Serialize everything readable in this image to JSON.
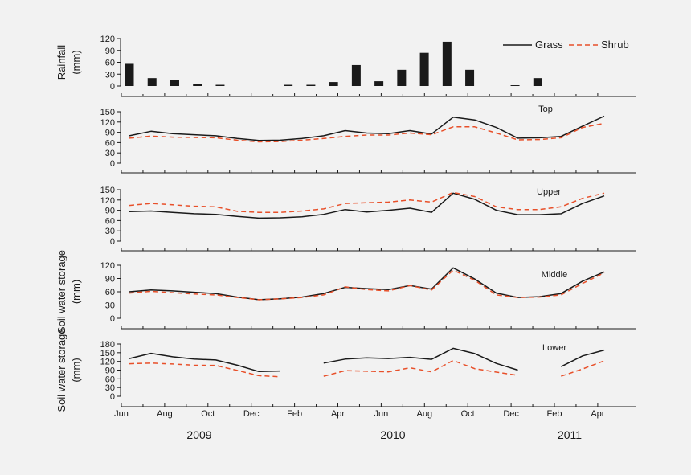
{
  "chart_data": {
    "type": "line",
    "legend": {
      "position": "top-right",
      "entries": [
        {
          "name": "Grass",
          "color": "#1a1a1a",
          "style": "solid"
        },
        {
          "name": "Shrub",
          "color": "#e8502a",
          "style": "dashed"
        }
      ]
    },
    "x_axis": {
      "ticks": [
        "Jun",
        "Aug",
        "Oct",
        "Dec",
        "Feb",
        "Apr",
        "Jun",
        "Aug",
        "Oct",
        "Dec",
        "Feb",
        "Apr"
      ],
      "years": [
        "2009",
        "2010",
        "2011"
      ]
    },
    "panels": [
      {
        "id": "rainfall",
        "type": "bar",
        "ylabel": [
          "Rainfall",
          "(mm)"
        ],
        "ylim": [
          0,
          120
        ],
        "yticks": [
          0,
          30,
          60,
          90,
          120
        ],
        "bar_color": "#1a1a1a",
        "values": [
          56,
          20,
          15,
          6,
          3,
          0,
          0,
          3,
          3,
          10,
          53,
          12,
          41,
          84,
          112,
          41,
          0,
          2,
          20,
          0,
          0,
          0
        ]
      },
      {
        "id": "top",
        "type": "line",
        "title": "Top",
        "ylim": [
          0,
          150
        ],
        "yticks": [
          0,
          30,
          60,
          90,
          120,
          150
        ],
        "series": [
          {
            "name": "Grass",
            "values": [
              80,
              93,
              86,
              83,
              80,
              72,
              66,
              67,
              72,
              80,
              95,
              88,
              86,
              95,
              85,
              134,
              126,
              104,
              73,
              74,
              78,
              108,
              137
            ]
          },
          {
            "name": "Shrub",
            "values": [
              73,
              79,
              76,
              75,
              74,
              67,
              62,
              63,
              67,
              72,
              78,
              82,
              82,
              88,
              83,
              106,
              106,
              88,
              68,
              69,
              74,
              104,
              116
            ]
          }
        ]
      },
      {
        "id": "upper",
        "type": "line",
        "title": "Upper",
        "ylim": [
          0,
          150
        ],
        "yticks": [
          0,
          30,
          60,
          90,
          120,
          150
        ],
        "series": [
          {
            "name": "Grass",
            "values": [
              86,
              88,
              84,
              80,
              78,
              72,
              67,
              68,
              71,
              78,
              92,
              85,
              90,
              96,
              84,
              140,
              122,
              90,
              77,
              77,
              80,
              110,
              132
            ]
          },
          {
            "name": "Shrub",
            "values": [
              104,
              110,
              106,
              102,
              100,
              87,
              84,
              84,
              88,
              94,
              110,
              112,
              114,
              120,
              114,
              142,
              130,
              100,
              92,
              92,
              100,
              125,
              140
            ]
          }
        ]
      },
      {
        "id": "middle",
        "type": "line",
        "title": "Middle",
        "ylabel": [
          "Soil water storage",
          "(mm)"
        ],
        "ylim": [
          0,
          120
        ],
        "yticks": [
          0,
          30,
          60,
          90,
          120
        ],
        "series": [
          {
            "name": "Grass",
            "values": [
              60,
              64,
              62,
              59,
              56,
              48,
              42,
              44,
              48,
              56,
              70,
              67,
              65,
              74,
              66,
              114,
              89,
              57,
              47,
              49,
              56,
              84,
              105
            ]
          },
          {
            "name": "Shrub",
            "values": [
              57,
              61,
              58,
              55,
              53,
              47,
              42,
              44,
              47,
              53,
              71,
              65,
              62,
              74,
              64,
              109,
              86,
              53,
              47,
              48,
              53,
              79,
              103
            ]
          }
        ]
      },
      {
        "id": "lower",
        "type": "line",
        "title": "Lower",
        "ylabel": [
          "Soil water storage",
          "(mm)"
        ],
        "ylim": [
          0,
          180
        ],
        "yticks": [
          0,
          30,
          60,
          90,
          120,
          150,
          180
        ],
        "series": [
          {
            "name": "Grass",
            "values": [
              130,
              148,
              136,
              128,
              125,
              107,
              85,
              87,
              null,
              114,
              128,
              132,
              130,
              134,
              127,
              165,
              147,
              113,
              90,
              null,
              102,
              139,
              159
            ]
          },
          {
            "name": "Shrub",
            "values": [
              112,
              114,
              111,
              107,
              106,
              89,
              71,
              67,
              null,
              69,
              88,
              86,
              84,
              98,
              84,
              123,
              95,
              83,
              72,
              null,
              69,
              94,
              122
            ]
          }
        ]
      }
    ]
  }
}
